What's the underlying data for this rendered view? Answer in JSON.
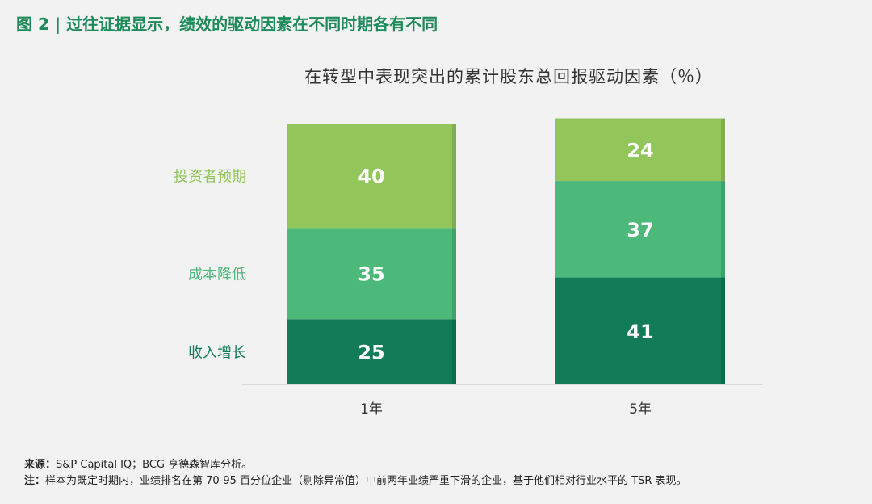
{
  "figure": {
    "title": "图 2 | 过往证据显示，绩效的驱动因素在不同时期各有不同"
  },
  "colors": {
    "title": "#1d8a5a",
    "investor_expectations": "#92c55a",
    "cost_reduction": "#4cb87a",
    "revenue_growth": "#117c57"
  },
  "chart_data": {
    "type": "bar",
    "stacked": true,
    "title": "在转型中表现突出的累计股东总回报驱动因素（％）",
    "categories": [
      "1年",
      "5年"
    ],
    "series": [
      {
        "name": "收入增长",
        "values": [
          25,
          41
        ]
      },
      {
        "name": "成本降低",
        "values": [
          35,
          37
        ]
      },
      {
        "name": "投资者预期",
        "values": [
          40,
          24
        ]
      }
    ],
    "ylim": [
      0,
      100
    ],
    "grid": false,
    "legend_position": "left"
  },
  "notes": {
    "source_label": "来源：",
    "source_text": "S&P Capital IQ；BCG 亨德森智库分析。",
    "note_label": "注：",
    "note_text": "样本为既定时期内，业绩排名在第 70-95 百分位企业（剔除异常值）中前两年业绩严重下滑的企业，基于他们相对行业水平的 TSR 表现。"
  }
}
